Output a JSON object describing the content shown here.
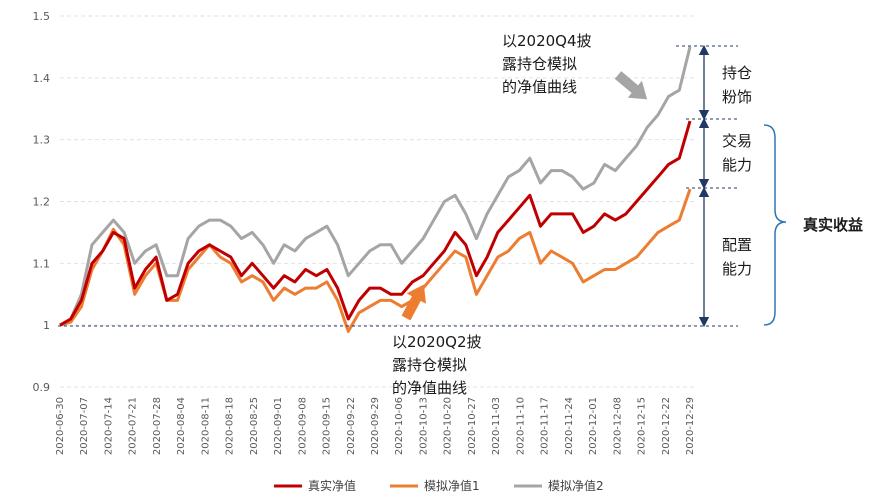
{
  "chart_data": {
    "type": "line",
    "ylim": [
      0.9,
      1.5
    ],
    "yticks": [
      "0.9",
      "1",
      "1.1",
      "1.2",
      "1.3",
      "1.4",
      "1.5"
    ],
    "xticks": [
      "2020-06-30",
      "2020-07-07",
      "2020-07-14",
      "2020-07-21",
      "2020-07-28",
      "2020-08-04",
      "2020-08-11",
      "2020-08-18",
      "2020-08-25",
      "2020-09-01",
      "2020-09-08",
      "2020-09-15",
      "2020-09-22",
      "2020-09-29",
      "2020-10-06",
      "2020-10-13",
      "2020-10-20",
      "2020-10-27",
      "2020-11-03",
      "2020-11-10",
      "2020-11-17",
      "2020-11-24",
      "2020-12-01",
      "2020-12-08",
      "2020-12-15",
      "2020-12-22",
      "2020-12-29"
    ],
    "grid": true,
    "legend_position": "bottom",
    "series": [
      {
        "name": "真实净值",
        "color": "#c00000",
        "values": [
          1.0,
          1.01,
          1.04,
          1.1,
          1.12,
          1.15,
          1.14,
          1.06,
          1.09,
          1.11,
          1.04,
          1.05,
          1.1,
          1.12,
          1.13,
          1.12,
          1.11,
          1.08,
          1.1,
          1.08,
          1.06,
          1.08,
          1.07,
          1.09,
          1.08,
          1.09,
          1.06,
          1.01,
          1.04,
          1.06,
          1.06,
          1.05,
          1.05,
          1.07,
          1.08,
          1.1,
          1.12,
          1.15,
          1.13,
          1.08,
          1.11,
          1.15,
          1.17,
          1.19,
          1.21,
          1.16,
          1.18,
          1.18,
          1.18,
          1.15,
          1.16,
          1.18,
          1.17,
          1.18,
          1.2,
          1.22,
          1.24,
          1.26,
          1.27,
          1.33
        ]
      },
      {
        "name": "模拟净值1",
        "color": "#ed7d31",
        "values": [
          1.0,
          1.005,
          1.03,
          1.09,
          1.12,
          1.155,
          1.13,
          1.05,
          1.08,
          1.1,
          1.04,
          1.04,
          1.09,
          1.11,
          1.13,
          1.11,
          1.1,
          1.07,
          1.08,
          1.07,
          1.04,
          1.06,
          1.05,
          1.06,
          1.06,
          1.07,
          1.04,
          0.99,
          1.02,
          1.03,
          1.04,
          1.04,
          1.03,
          1.04,
          1.06,
          1.08,
          1.1,
          1.12,
          1.11,
          1.05,
          1.08,
          1.11,
          1.12,
          1.14,
          1.15,
          1.1,
          1.12,
          1.11,
          1.1,
          1.07,
          1.08,
          1.09,
          1.09,
          1.1,
          1.11,
          1.13,
          1.15,
          1.16,
          1.17,
          1.22
        ]
      },
      {
        "name": "模拟净值2",
        "color": "#a5a5a5",
        "values": [
          1.0,
          1.01,
          1.05,
          1.13,
          1.15,
          1.17,
          1.15,
          1.1,
          1.12,
          1.13,
          1.08,
          1.08,
          1.14,
          1.16,
          1.17,
          1.17,
          1.16,
          1.14,
          1.15,
          1.13,
          1.1,
          1.13,
          1.12,
          1.14,
          1.15,
          1.16,
          1.13,
          1.08,
          1.1,
          1.12,
          1.13,
          1.13,
          1.1,
          1.12,
          1.14,
          1.17,
          1.2,
          1.21,
          1.18,
          1.14,
          1.18,
          1.21,
          1.24,
          1.25,
          1.27,
          1.23,
          1.25,
          1.25,
          1.24,
          1.22,
          1.23,
          1.26,
          1.25,
          1.27,
          1.29,
          1.32,
          1.34,
          1.37,
          1.38,
          1.45
        ]
      }
    ]
  },
  "annotations": {
    "q4_label": [
      "以2020Q4披",
      "露持仓模拟",
      "的净值曲线"
    ],
    "q2_label": [
      "以2020Q2披",
      "露持仓模拟",
      "的净值曲线"
    ],
    "holding_dressing": [
      "持仓",
      "粉饰"
    ],
    "trading_ability": [
      "交易",
      "能力"
    ],
    "allocation_ability": [
      "配置",
      "能力"
    ],
    "real_return": "真实收益"
  },
  "arrow_colors": {
    "gray": "#a5a5a5",
    "orange": "#ed7d31",
    "bracket": "#2f5597",
    "brace": "#2e75b6"
  }
}
